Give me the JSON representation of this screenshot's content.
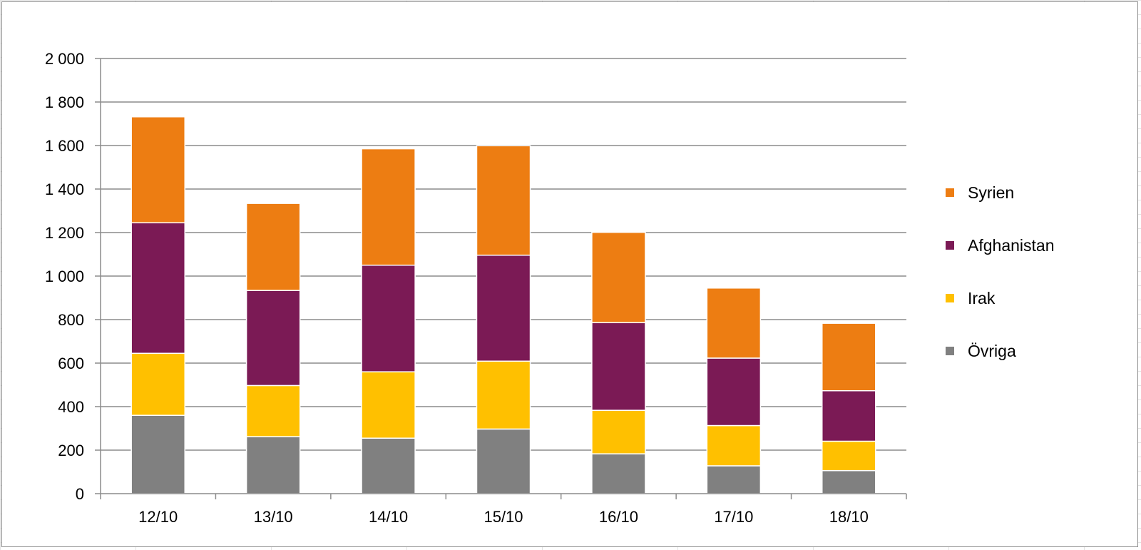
{
  "chart_data": {
    "type": "bar",
    "stacked": true,
    "categories": [
      "12/10",
      "13/10",
      "14/10",
      "15/10",
      "16/10",
      "17/10",
      "18/10"
    ],
    "series": [
      {
        "name": "Övriga",
        "color": "#808080",
        "values": [
          360,
          262,
          255,
          297,
          183,
          128,
          106
        ]
      },
      {
        "name": "Irak",
        "color": "#FFC000",
        "values": [
          285,
          235,
          305,
          312,
          200,
          185,
          135
        ]
      },
      {
        "name": "Afghanistan",
        "color": "#7B1A55",
        "values": [
          600,
          437,
          490,
          487,
          403,
          310,
          232
        ]
      },
      {
        "name": "Syrien",
        "color": "#ED7D12",
        "values": [
          487,
          400,
          535,
          503,
          415,
          322,
          310
        ]
      }
    ],
    "legend_order": [
      "Syrien",
      "Afghanistan",
      "Irak",
      "Övriga"
    ],
    "ylim": [
      0,
      2000
    ],
    "yticks": [
      0,
      200,
      400,
      600,
      800,
      1000,
      1200,
      1400,
      1600,
      1800,
      2000
    ],
    "ytick_labels": [
      "0",
      "200",
      "400",
      "600",
      "800",
      "1 000",
      "1 200",
      "1 400",
      "1 600",
      "1 800",
      "2 000"
    ],
    "grid": true,
    "legend_position": "right",
    "title": "",
    "xlabel": "",
    "ylabel": ""
  }
}
